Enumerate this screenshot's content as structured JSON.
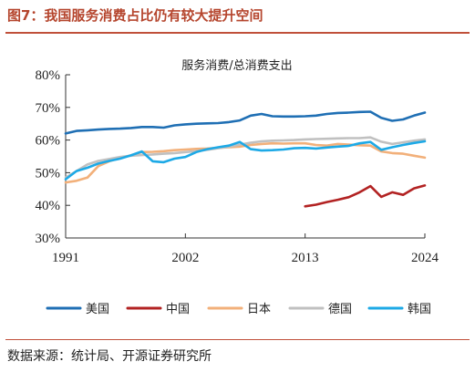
{
  "figure": {
    "title": "图7：我国服务消费占比仍有较大提升空间",
    "source": "数据来源：统计局、开源证券研究所"
  },
  "chart_data": {
    "type": "line",
    "title": "服务消费/总消费支出",
    "xlabel": "",
    "ylabel": "",
    "x_ticks": [
      "1991",
      "2002",
      "2013",
      "2024"
    ],
    "y_ticks": [
      "30%",
      "40%",
      "50%",
      "60%",
      "70%",
      "80%"
    ],
    "xlim": [
      1991,
      2024
    ],
    "ylim": [
      30,
      80
    ],
    "grid": false,
    "legend_position": "bottom",
    "series": [
      {
        "name": "美国",
        "color": "#1f6fb4",
        "x": [
          1991,
          1992,
          1993,
          1994,
          1995,
          1996,
          1997,
          1998,
          1999,
          2000,
          2001,
          2002,
          2003,
          2004,
          2005,
          2006,
          2007,
          2008,
          2009,
          2010,
          2011,
          2012,
          2013,
          2014,
          2015,
          2016,
          2017,
          2018,
          2019,
          2020,
          2021,
          2022,
          2023,
          2024
        ],
        "y": [
          62.0,
          62.8,
          63.0,
          63.2,
          63.4,
          63.5,
          63.7,
          64.0,
          64.0,
          63.8,
          64.5,
          64.8,
          65.0,
          65.1,
          65.2,
          65.5,
          66.0,
          67.5,
          68.0,
          67.3,
          67.2,
          67.2,
          67.3,
          67.5,
          68.0,
          68.3,
          68.4,
          68.6,
          68.7,
          66.8,
          65.9,
          66.3,
          67.5,
          68.4
        ]
      },
      {
        "name": "中国",
        "color": "#b22222",
        "x": [
          2013,
          2014,
          2015,
          2016,
          2017,
          2018,
          2019,
          2020,
          2021,
          2022,
          2023,
          2024
        ],
        "y": [
          39.7,
          40.2,
          41.0,
          41.7,
          42.5,
          44.0,
          45.9,
          42.6,
          44.0,
          43.2,
          45.2,
          46.1
        ]
      },
      {
        "name": "日本",
        "color": "#f2b07a",
        "x": [
          1991,
          1992,
          1993,
          1994,
          1995,
          1996,
          1997,
          1998,
          1999,
          2000,
          2001,
          2002,
          2003,
          2004,
          2005,
          2006,
          2007,
          2008,
          2009,
          2010,
          2011,
          2012,
          2013,
          2014,
          2015,
          2016,
          2017,
          2018,
          2019,
          2020,
          2021,
          2022,
          2023,
          2024
        ],
        "y": [
          47.0,
          47.5,
          48.5,
          52.0,
          53.5,
          54.5,
          55.3,
          56.3,
          56.4,
          56.6,
          56.9,
          57.1,
          57.3,
          57.4,
          57.6,
          57.8,
          58.0,
          58.5,
          58.8,
          59.0,
          58.9,
          59.0,
          59.0,
          58.5,
          58.3,
          58.8,
          58.6,
          58.4,
          58.3,
          56.5,
          56.0,
          55.8,
          55.2,
          54.6
        ]
      },
      {
        "name": "德国",
        "color": "#c0c0c0",
        "x": [
          1991,
          1992,
          1993,
          1994,
          1995,
          1996,
          1997,
          1998,
          1999,
          2000,
          2001,
          2002,
          2003,
          2004,
          2005,
          2006,
          2007,
          2008,
          2009,
          2010,
          2011,
          2012,
          2013,
          2014,
          2015,
          2016,
          2017,
          2018,
          2019,
          2020,
          2021,
          2022,
          2023,
          2024
        ],
        "y": [
          48.5,
          50.5,
          52.5,
          53.6,
          54.2,
          54.8,
          55.2,
          55.4,
          55.6,
          55.8,
          56.0,
          56.3,
          56.6,
          57.0,
          57.5,
          58.0,
          58.6,
          59.2,
          59.6,
          59.8,
          59.9,
          60.0,
          60.2,
          60.3,
          60.4,
          60.5,
          60.6,
          60.6,
          60.8,
          59.5,
          58.8,
          59.3,
          59.8,
          60.2
        ]
      },
      {
        "name": "韩国",
        "color": "#1da9e6",
        "x": [
          1991,
          1992,
          1993,
          1994,
          1995,
          1996,
          1997,
          1998,
          1999,
          2000,
          2001,
          2002,
          2003,
          2004,
          2005,
          2006,
          2007,
          2008,
          2009,
          2010,
          2011,
          2012,
          2013,
          2014,
          2015,
          2016,
          2017,
          2018,
          2019,
          2020,
          2021,
          2022,
          2023,
          2024
        ],
        "y": [
          48.0,
          50.5,
          51.5,
          52.8,
          53.6,
          54.3,
          55.3,
          56.5,
          53.5,
          53.2,
          54.3,
          54.8,
          56.3,
          57.2,
          57.8,
          58.3,
          59.4,
          57.2,
          56.8,
          56.9,
          57.1,
          57.5,
          57.6,
          57.4,
          57.7,
          58.0,
          58.2,
          59.0,
          59.4,
          57.0,
          57.8,
          58.5,
          59.1,
          59.6
        ]
      }
    ]
  }
}
